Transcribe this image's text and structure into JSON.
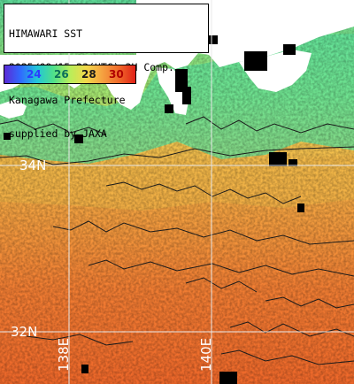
{
  "title_lines": [
    "HIMAWARI SST",
    "2025/09/15 23(UTC) 3H Comp.",
    "Kanagawa Prefecture",
    "supplied by JAXA"
  ],
  "color_scale": {
    "ticks": [
      "24",
      "26",
      "28",
      "30"
    ],
    "tick_colors": [
      "#2b3cff",
      "#0a6e5a",
      "#1a1a1a",
      "#b00000"
    ],
    "stops": [
      "#5b2bd6",
      "#2f6bff",
      "#22c6d8",
      "#4fe08a",
      "#b8ee5a",
      "#f2d84a",
      "#f5a040",
      "#f06a2a",
      "#e02018"
    ]
  },
  "lat_labels": [
    "34N",
    "32N"
  ],
  "lon_labels": [
    "138E",
    "140E"
  ],
  "colors": {
    "land": "#ffffff",
    "cloud": "#000000",
    "graticule": "#e8e8e8",
    "sst_cool": "#6fe29a",
    "sst_mid": "#f2b24a",
    "sst_warm": "#f06a2a"
  }
}
